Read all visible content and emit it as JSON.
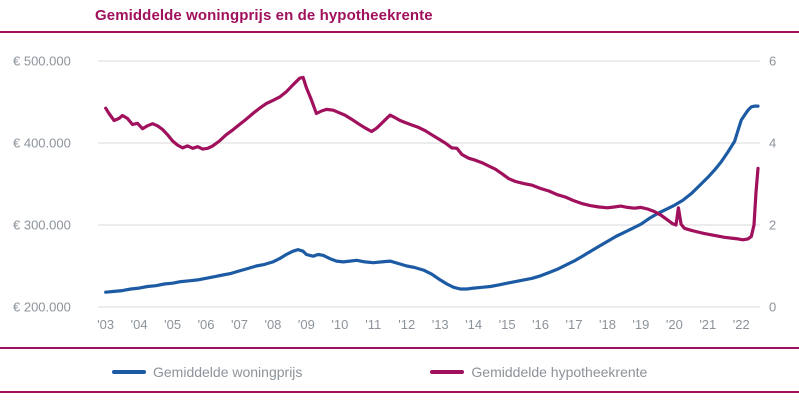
{
  "colors": {
    "maroon": "#A0105C",
    "blue": "#1C5BA4",
    "axis_text": "#8C939B",
    "gridline": "#D9D9D9",
    "background": "#FFFFFF"
  },
  "chart_data": {
    "type": "line",
    "title": "Gemiddelde woningprijs en de hypotheekrente",
    "grid": "horizontal",
    "legend_position": "bottom",
    "x_domain": [
      2002.77,
      2022.56
    ],
    "x_ticks": [
      {
        "year": 2003,
        "label": "'03"
      },
      {
        "year": 2004,
        "label": "'04"
      },
      {
        "year": 2005,
        "label": "'05"
      },
      {
        "year": 2006,
        "label": "'06"
      },
      {
        "year": 2007,
        "label": "'07"
      },
      {
        "year": 2008,
        "label": "'08"
      },
      {
        "year": 2009,
        "label": "'09"
      },
      {
        "year": 2010,
        "label": "'10"
      },
      {
        "year": 2011,
        "label": "'11"
      },
      {
        "year": 2012,
        "label": "'12"
      },
      {
        "year": 2013,
        "label": "'13"
      },
      {
        "year": 2014,
        "label": "'14"
      },
      {
        "year": 2015,
        "label": "'15"
      },
      {
        "year": 2016,
        "label": "'16"
      },
      {
        "year": 2017,
        "label": "'17"
      },
      {
        "year": 2018,
        "label": "'18"
      },
      {
        "year": 2019,
        "label": "'19"
      },
      {
        "year": 2020,
        "label": "'20"
      },
      {
        "year": 2021,
        "label": "'21"
      },
      {
        "year": 2022,
        "label": "'22"
      }
    ],
    "left_axis": {
      "min": 200000,
      "max": 500000,
      "ticks": [
        {
          "value": 500000,
          "label": "€ 500.000"
        },
        {
          "value": 400000,
          "label": "€ 400.000"
        },
        {
          "value": 300000,
          "label": "€ 300.000"
        },
        {
          "value": 200000,
          "label": "€ 200.000"
        }
      ]
    },
    "right_axis": {
      "min": 0,
      "max": 6,
      "ticks": [
        {
          "value": 6,
          "label": "6"
        },
        {
          "value": 4,
          "label": "4"
        },
        {
          "value": 2,
          "label": "2"
        },
        {
          "value": 0,
          "label": "0"
        }
      ]
    },
    "series": [
      {
        "name": "Gemiddelde woningprijs",
        "axis": "left",
        "color": "#1C5BA4",
        "x": [
          2003.0,
          2003.25,
          2003.5,
          2003.75,
          2004.0,
          2004.25,
          2004.5,
          2004.75,
          2005.0,
          2005.25,
          2005.5,
          2005.75,
          2006.0,
          2006.25,
          2006.5,
          2006.75,
          2007.0,
          2007.25,
          2007.5,
          2007.75,
          2008.0,
          2008.2,
          2008.4,
          2008.6,
          2008.75,
          2008.9,
          2009.0,
          2009.2,
          2009.35,
          2009.5,
          2009.7,
          2009.9,
          2010.1,
          2010.3,
          2010.5,
          2010.75,
          2011.0,
          2011.25,
          2011.5,
          2011.75,
          2012.0,
          2012.25,
          2012.5,
          2012.75,
          2013.0,
          2013.2,
          2013.4,
          2013.6,
          2013.8,
          2014.0,
          2014.25,
          2014.5,
          2014.75,
          2015.0,
          2015.25,
          2015.5,
          2015.75,
          2016.0,
          2016.25,
          2016.5,
          2016.75,
          2017.0,
          2017.25,
          2017.5,
          2017.75,
          2018.0,
          2018.25,
          2018.5,
          2018.75,
          2019.0,
          2019.25,
          2019.5,
          2019.75,
          2020.0,
          2020.25,
          2020.5,
          2020.75,
          2021.0,
          2021.2,
          2021.4,
          2021.6,
          2021.8,
          2021.9,
          2022.0,
          2022.1,
          2022.2,
          2022.3,
          2022.4,
          2022.5
        ],
        "values": [
          218000,
          219000,
          220000,
          222000,
          223000,
          225000,
          226000,
          228000,
          229000,
          231000,
          232000,
          233000,
          235000,
          237000,
          239000,
          241000,
          244000,
          247000,
          250000,
          252000,
          255000,
          259000,
          264000,
          268000,
          270000,
          268000,
          264000,
          262000,
          264000,
          263000,
          259000,
          256000,
          255000,
          256000,
          257000,
          255000,
          254000,
          255000,
          256000,
          253000,
          250000,
          248000,
          245000,
          240000,
          233000,
          228000,
          224000,
          222000,
          222000,
          223000,
          224000,
          225000,
          227000,
          229000,
          231000,
          233000,
          235000,
          238000,
          242000,
          246000,
          251000,
          256000,
          262000,
          268000,
          274000,
          280000,
          286000,
          291000,
          296000,
          301000,
          308000,
          314000,
          319000,
          324000,
          330000,
          338000,
          348000,
          358000,
          367000,
          377000,
          389000,
          402000,
          415000,
          428000,
          434000,
          440000,
          444000,
          445000,
          445000
        ]
      },
      {
        "name": "Gemiddelde hypotheekrente",
        "axis": "right",
        "color": "#A0105C",
        "x": [
          2003.0,
          2003.1,
          2003.25,
          2003.4,
          2003.5,
          2003.65,
          2003.8,
          2003.95,
          2004.1,
          2004.25,
          2004.4,
          2004.55,
          2004.7,
          2004.85,
          2005.0,
          2005.15,
          2005.3,
          2005.45,
          2005.6,
          2005.75,
          2005.9,
          2006.05,
          2006.2,
          2006.4,
          2006.6,
          2006.8,
          2007.0,
          2007.2,
          2007.4,
          2007.6,
          2007.8,
          2008.0,
          2008.2,
          2008.4,
          2008.6,
          2008.8,
          2008.9,
          2009.0,
          2009.15,
          2009.3,
          2009.45,
          2009.6,
          2009.8,
          2009.95,
          2010.15,
          2010.35,
          2010.55,
          2010.75,
          2010.95,
          2011.1,
          2011.3,
          2011.5,
          2011.65,
          2011.8,
          2011.95,
          2012.15,
          2012.35,
          2012.55,
          2012.75,
          2012.95,
          2013.15,
          2013.35,
          2013.5,
          2013.65,
          2013.85,
          2014.05,
          2014.25,
          2014.45,
          2014.65,
          2014.85,
          2015.05,
          2015.25,
          2015.5,
          2015.75,
          2016.0,
          2016.25,
          2016.5,
          2016.75,
          2017.0,
          2017.25,
          2017.5,
          2017.75,
          2018.0,
          2018.2,
          2018.4,
          2018.6,
          2018.8,
          2019.0,
          2019.2,
          2019.4,
          2019.6,
          2019.8,
          2019.95,
          2020.05,
          2020.12,
          2020.2,
          2020.3,
          2020.5,
          2020.7,
          2020.9,
          2021.1,
          2021.3,
          2021.5,
          2021.7,
          2021.9,
          2022.05,
          2022.2,
          2022.3,
          2022.38,
          2022.44,
          2022.5
        ],
        "values": [
          4.85,
          4.72,
          4.55,
          4.6,
          4.67,
          4.6,
          4.45,
          4.48,
          4.35,
          4.42,
          4.47,
          4.42,
          4.33,
          4.2,
          4.05,
          3.95,
          3.88,
          3.93,
          3.87,
          3.91,
          3.85,
          3.87,
          3.93,
          4.05,
          4.2,
          4.32,
          4.45,
          4.58,
          4.72,
          4.85,
          4.96,
          5.04,
          5.12,
          5.25,
          5.42,
          5.58,
          5.6,
          5.35,
          5.05,
          4.72,
          4.78,
          4.82,
          4.8,
          4.75,
          4.68,
          4.58,
          4.47,
          4.37,
          4.28,
          4.36,
          4.52,
          4.68,
          4.62,
          4.55,
          4.5,
          4.44,
          4.38,
          4.3,
          4.2,
          4.1,
          4.0,
          3.88,
          3.87,
          3.72,
          3.63,
          3.58,
          3.52,
          3.44,
          3.36,
          3.25,
          3.13,
          3.06,
          3.01,
          2.97,
          2.89,
          2.83,
          2.74,
          2.68,
          2.59,
          2.52,
          2.47,
          2.44,
          2.42,
          2.44,
          2.46,
          2.43,
          2.41,
          2.43,
          2.39,
          2.33,
          2.24,
          2.12,
          2.03,
          2.0,
          2.42,
          2.02,
          1.92,
          1.87,
          1.83,
          1.79,
          1.76,
          1.73,
          1.7,
          1.68,
          1.66,
          1.64,
          1.66,
          1.72,
          2.0,
          2.8,
          3.38
        ]
      }
    ]
  }
}
